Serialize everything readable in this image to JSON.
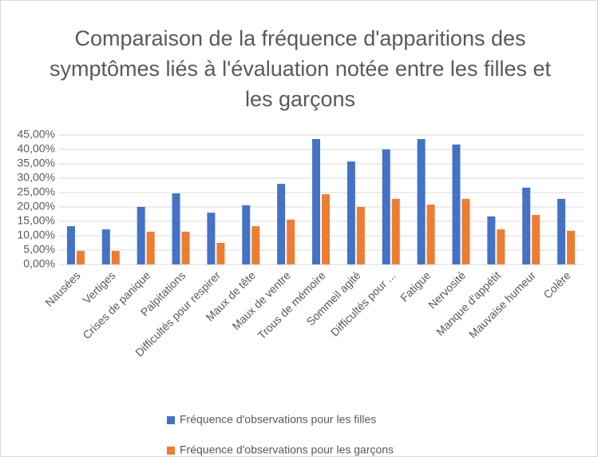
{
  "chart_data": {
    "type": "bar",
    "title": "Comparaison de la fréquence d'apparitions des symptômes liés à l'évaluation notée entre les filles et les garçons",
    "categories": [
      "Nausées",
      "Vertiges",
      "Crises de panique",
      "Palpitations",
      "Difficultés pour respirer",
      "Maux de tête",
      "Maux de ventre",
      "Trous de mémoire",
      "Sommeil agité",
      "Difficultés pour ...",
      "Fatigue",
      "Nervosité",
      "Manque d'appétit",
      "Mauvaise humeur",
      "Colère"
    ],
    "series": [
      {
        "name": "Fréquence d'observations pour les filles",
        "color": "#4472c4",
        "values": [
          13.3,
          12.2,
          20,
          24.7,
          18,
          20.6,
          28,
          43.6,
          35.8,
          40,
          43.6,
          41.7,
          16.7,
          26.7,
          22.8
        ]
      },
      {
        "name": "Fréquence d'observations pour les garçons",
        "color": "#ed7d31",
        "values": [
          4.7,
          4.7,
          11.4,
          11.4,
          7.5,
          13.3,
          15.6,
          24.4,
          20,
          22.8,
          20.8,
          22.8,
          12.2,
          17.2,
          11.7
        ]
      }
    ],
    "ylim": [
      0,
      45
    ],
    "yticks": [
      {
        "value": 0,
        "label": "0,00%"
      },
      {
        "value": 5,
        "label": "5,00%"
      },
      {
        "value": 10,
        "label": "10,00%"
      },
      {
        "value": 15,
        "label": "15,00%"
      },
      {
        "value": 20,
        "label": "20,00%"
      },
      {
        "value": 25,
        "label": "25,00%"
      },
      {
        "value": 30,
        "label": "30,00%"
      },
      {
        "value": 35,
        "label": "35,00%"
      },
      {
        "value": 40,
        "label": "40,00%"
      },
      {
        "value": 45,
        "label": "45,00%"
      }
    ],
    "grid": true,
    "legend": "bottom"
  }
}
